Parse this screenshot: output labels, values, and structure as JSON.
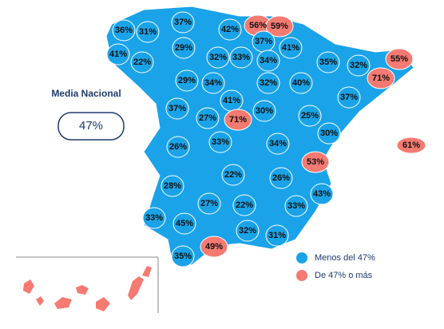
{
  "title": "Media Nacional",
  "average": {
    "value": 47,
    "label": "47%"
  },
  "legend": [
    {
      "name": "Menos del 47%",
      "color": "#1aa3e8"
    },
    {
      "name": "De 47% o más",
      "color": "#f47a72"
    }
  ],
  "regions": {
    "values": [
      36,
      31,
      37,
      42,
      56,
      59,
      37,
      41,
      22,
      29,
      32,
      33,
      34,
      41,
      35,
      32,
      55,
      71,
      29,
      34,
      41,
      32,
      40,
      37,
      37,
      27,
      71,
      30,
      25,
      30,
      61,
      26,
      33,
      34,
      53,
      22,
      26,
      43,
      28,
      27,
      22,
      33,
      33,
      45,
      32,
      31,
      49,
      35
    ],
    "value_labels": [
      "36%",
      "31%",
      "37%",
      "42%",
      "56%",
      "59%",
      "37%",
      "41%",
      "22%",
      "29%",
      "32%",
      "33%",
      "34%",
      "41%",
      "35%",
      "32%",
      "55%",
      "71%",
      "29%",
      "34%",
      "41%",
      "32%",
      "40%",
      "37%",
      "37%",
      "27%",
      "71%",
      "30%",
      "25%",
      "30%",
      "61%",
      "26%",
      "33%",
      "34%",
      "53%",
      "22%",
      "26%",
      "43%",
      "28%",
      "27%",
      "22%",
      "33%",
      "33%",
      "45%",
      "32%",
      "31%",
      "49%",
      "35%"
    ]
  }
}
